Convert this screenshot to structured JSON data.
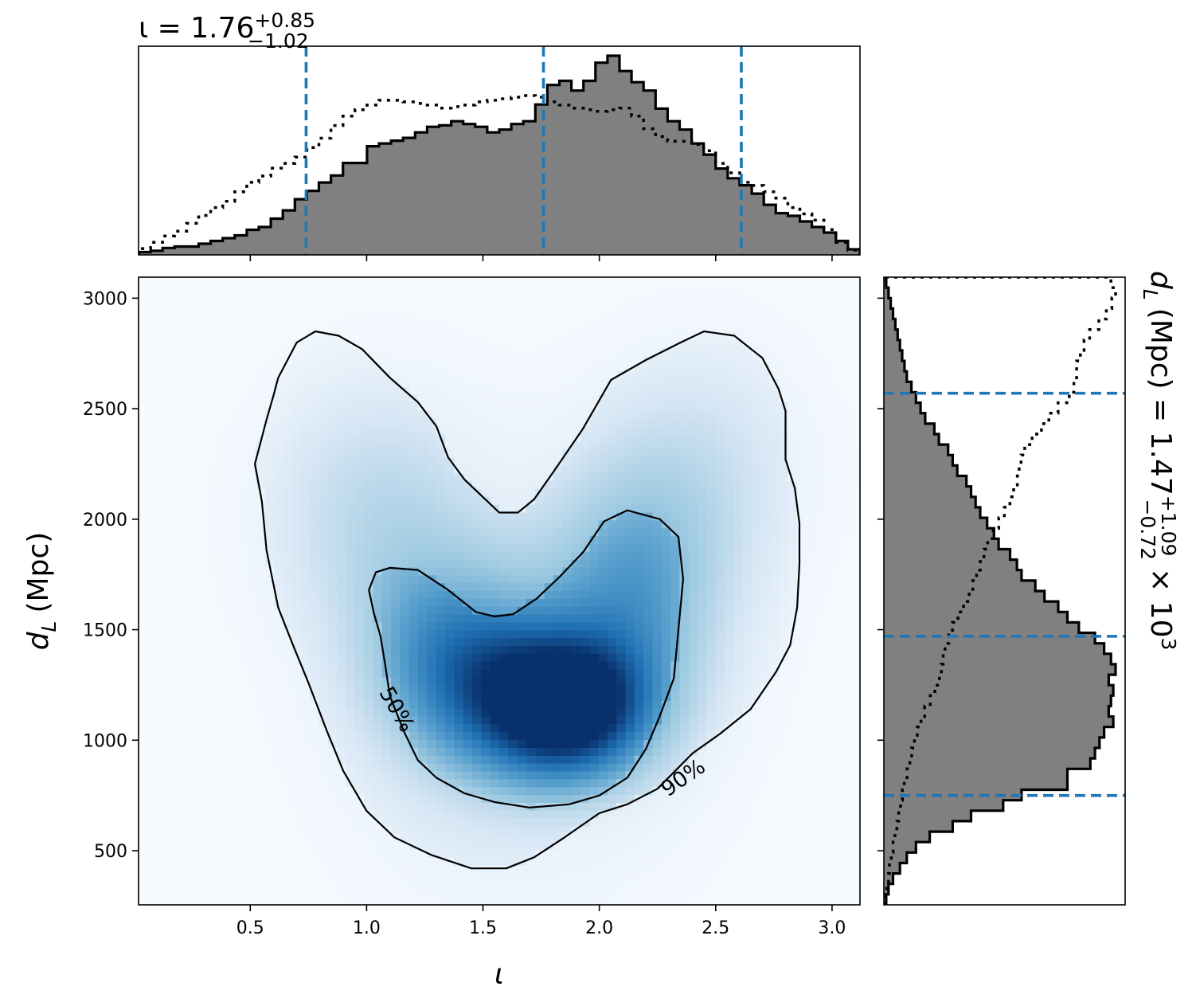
{
  "chart_data": [
    {
      "type": "heatmap",
      "panel": "joint",
      "xlabel": "ι",
      "ylabel_symbol": "d",
      "ylabel_sub": "L",
      "ylabel_unit": "(Mpc)",
      "xlim": [
        0.02,
        3.12
      ],
      "ylim": [
        255,
        3095
      ],
      "xticks": [
        0.5,
        1.0,
        1.5,
        2.0,
        2.5,
        3.0
      ],
      "xtick_labels": [
        "0.5",
        "1.0",
        "1.5",
        "2.0",
        "2.5",
        "3.0"
      ],
      "yticks": [
        500,
        1000,
        1500,
        2000,
        2500,
        3000
      ],
      "ytick_labels": [
        "500",
        "1000",
        "1500",
        "2000",
        "2500",
        "3000"
      ],
      "colormap": "Blues",
      "density_peak": {
        "x": 1.85,
        "y": 1140
      },
      "contours": [
        {
          "label": "50%",
          "label_position": {
            "x": 1.13,
            "y": 1140
          },
          "points": [
            [
              1.1,
              1780
            ],
            [
              1.22,
              1770
            ],
            [
              1.35,
              1680
            ],
            [
              1.47,
              1580
            ],
            [
              1.55,
              1560
            ],
            [
              1.63,
              1570
            ],
            [
              1.73,
              1640
            ],
            [
              1.83,
              1740
            ],
            [
              1.93,
              1850
            ],
            [
              2.02,
              1990
            ],
            [
              2.12,
              2040
            ],
            [
              2.26,
              2000
            ],
            [
              2.34,
              1920
            ],
            [
              2.36,
              1730
            ],
            [
              2.34,
              1500
            ],
            [
              2.32,
              1280
            ],
            [
              2.26,
              1110
            ],
            [
              2.2,
              960
            ],
            [
              2.12,
              830
            ],
            [
              2.0,
              750
            ],
            [
              1.87,
              710
            ],
            [
              1.7,
              695
            ],
            [
              1.55,
              720
            ],
            [
              1.42,
              760
            ],
            [
              1.3,
              830
            ],
            [
              1.22,
              910
            ],
            [
              1.16,
              1040
            ],
            [
              1.1,
              1200
            ],
            [
              1.08,
              1340
            ],
            [
              1.06,
              1470
            ],
            [
              1.03,
              1580
            ],
            [
              1.01,
              1680
            ],
            [
              1.04,
              1760
            ]
          ]
        },
        {
          "label": "90%",
          "label_position": {
            "x": 2.36,
            "y": 830
          },
          "points": [
            [
              0.62,
              2640
            ],
            [
              0.7,
              2800
            ],
            [
              0.78,
              2850
            ],
            [
              0.88,
              2830
            ],
            [
              0.98,
              2770
            ],
            [
              1.1,
              2640
            ],
            [
              1.22,
              2530
            ],
            [
              1.3,
              2420
            ],
            [
              1.35,
              2280
            ],
            [
              1.42,
              2180
            ],
            [
              1.5,
              2100
            ],
            [
              1.57,
              2030
            ],
            [
              1.65,
              2030
            ],
            [
              1.72,
              2090
            ],
            [
              1.8,
              2210
            ],
            [
              1.93,
              2410
            ],
            [
              2.05,
              2630
            ],
            [
              2.2,
              2720
            ],
            [
              2.35,
              2800
            ],
            [
              2.45,
              2850
            ],
            [
              2.58,
              2830
            ],
            [
              2.7,
              2730
            ],
            [
              2.77,
              2590
            ],
            [
              2.8,
              2490
            ],
            [
              2.8,
              2270
            ],
            [
              2.84,
              2140
            ],
            [
              2.86,
              1980
            ],
            [
              2.86,
              1800
            ],
            [
              2.85,
              1600
            ],
            [
              2.82,
              1430
            ],
            [
              2.76,
              1310
            ],
            [
              2.65,
              1140
            ],
            [
              2.52,
              1030
            ],
            [
              2.4,
              940
            ],
            [
              2.25,
              780
            ],
            [
              2.12,
              710
            ],
            [
              2.0,
              670
            ],
            [
              1.85,
              560
            ],
            [
              1.72,
              470
            ],
            [
              1.6,
              420
            ],
            [
              1.45,
              420
            ],
            [
              1.28,
              480
            ],
            [
              1.12,
              560
            ],
            [
              1.0,
              680
            ],
            [
              0.9,
              860
            ],
            [
              0.83,
              1040
            ],
            [
              0.75,
              1260
            ],
            [
              0.68,
              1440
            ],
            [
              0.62,
              1600
            ],
            [
              0.57,
              1860
            ],
            [
              0.55,
              2080
            ],
            [
              0.52,
              2250
            ],
            [
              0.57,
              2450
            ],
            [
              0.6,
              2560
            ]
          ]
        }
      ]
    },
    {
      "type": "histogram",
      "panel": "top-marginal",
      "variable": "ι",
      "title_main": "ι = 1.76",
      "title_sup": "+0.85",
      "title_sub": "−1.02",
      "xlim": [
        0.02,
        3.12
      ],
      "bin_edges": [
        0.02,
        0.0717,
        0.1233,
        0.175,
        0.2267,
        0.2783,
        0.33,
        0.3817,
        0.4333,
        0.485,
        0.5367,
        0.5883,
        0.64,
        0.6917,
        0.7433,
        0.795,
        0.8467,
        0.8983,
        0.95,
        1.0017,
        1.0533,
        1.105,
        1.1567,
        1.2083,
        1.26,
        1.3117,
        1.3633,
        1.415,
        1.4667,
        1.5183,
        1.57,
        1.6217,
        1.6733,
        1.725,
        1.7767,
        1.8283,
        1.88,
        1.9317,
        1.9833,
        2.035,
        2.0867,
        2.1383,
        2.19,
        2.2417,
        2.2933,
        2.345,
        2.3967,
        2.4483,
        2.5,
        2.5517,
        2.6033,
        2.655,
        2.7067,
        2.7583,
        2.81,
        2.8617,
        2.9133,
        2.965,
        3.0167,
        3.0683,
        3.12
      ],
      "series": [
        {
          "style": "filled-step",
          "values": [
            2,
            3,
            5,
            6,
            6,
            8,
            10,
            12,
            14,
            18,
            20,
            26,
            32,
            40,
            46,
            52,
            57,
            66,
            66,
            78,
            80,
            82,
            84,
            88,
            92,
            93,
            96,
            94,
            92,
            88,
            90,
            94,
            96,
            108,
            122,
            125,
            118,
            125,
            138,
            143,
            132,
            124,
            118,
            105,
            96,
            90,
            80,
            72,
            62,
            55,
            50,
            44,
            36,
            30,
            28,
            24,
            20,
            16,
            10,
            4
          ]
        },
        {
          "style": "dotted-step",
          "values": [
            4,
            8,
            12,
            15,
            20,
            25,
            30,
            34,
            40,
            46,
            50,
            55,
            58,
            62,
            68,
            74,
            82,
            88,
            92,
            95,
            98,
            98,
            97,
            96,
            95,
            93,
            94,
            95,
            97,
            98,
            99,
            100,
            101,
            100,
            97,
            95,
            93,
            92,
            91,
            92,
            93,
            88,
            80,
            75,
            72,
            72,
            70,
            66,
            58,
            52,
            46,
            44,
            40,
            36,
            30,
            26,
            22,
            16,
            8,
            3
          ]
        }
      ],
      "quantile_lines": [
        0.74,
        1.76,
        2.61
      ],
      "quantile_color": "#1f77b4"
    },
    {
      "type": "histogram",
      "panel": "right-marginal",
      "variable": "d_L (Mpc)",
      "orientation": "horizontal",
      "title_main": "d",
      "title_main_sub": "L",
      "title_unit": "(Mpc) = 1.47",
      "title_sup": "+1.09",
      "title_sub": "−0.72",
      "title_tail": "× 10",
      "title_exp": "3",
      "ylim": [
        255,
        3095
      ],
      "bin_edges": [
        255,
        302.3,
        349.7,
        397,
        444.3,
        491.7,
        539,
        586.3,
        633.7,
        681,
        728.3,
        775.7,
        823,
        870.3,
        917.7,
        965,
        1012.3,
        1059.7,
        1107,
        1154.3,
        1201.7,
        1249,
        1296.3,
        1343.7,
        1391,
        1438.3,
        1485.7,
        1533,
        1580.3,
        1627.7,
        1675,
        1722.3,
        1769.7,
        1817,
        1864.3,
        1911.7,
        1959,
        2006.3,
        2053.7,
        2101,
        2148.3,
        2195.7,
        2243,
        2290.3,
        2337.7,
        2385,
        2432.3,
        2479.7,
        2527,
        2574.3,
        2621.7,
        2669,
        2716.3,
        2763.7,
        2811,
        2858.3,
        2905.7,
        2953,
        3000.3,
        3047.7,
        3095
      ],
      "series": [
        {
          "style": "filled-step",
          "values": [
            1,
            2,
            4,
            7,
            10,
            14,
            20,
            30,
            38,
            52,
            60,
            80,
            80,
            90,
            92,
            94,
            96,
            100,
            98,
            99,
            100,
            98,
            101,
            99,
            96,
            92,
            85,
            80,
            76,
            70,
            66,
            60,
            58,
            55,
            50,
            48,
            45,
            42,
            40,
            38,
            36,
            32,
            30,
            28,
            24,
            22,
            18,
            16,
            14,
            12,
            10,
            9,
            8,
            7,
            6,
            5,
            4,
            3,
            2,
            1
          ],
          "scale_max": 101
        },
        {
          "style": "dotted-step",
          "values": [
            1,
            3,
            5,
            6,
            8,
            10,
            12,
            14,
            16,
            18,
            20,
            22,
            25,
            28,
            30,
            33,
            36,
            40,
            44,
            50,
            55,
            60,
            62,
            64,
            66,
            70,
            74,
            80,
            86,
            92,
            96,
            100,
            104,
            108,
            112,
            118,
            124,
            130,
            136,
            140,
            144,
            146,
            148,
            152,
            160,
            170,
            178,
            188,
            200,
            205,
            208,
            208,
            212,
            216,
            222,
            232,
            240,
            246,
            250,
            245
          ],
          "scale_max": 250
        }
      ],
      "quantile_lines": [
        750,
        1470,
        2570
      ],
      "quantile_color": "#1f77b4"
    }
  ]
}
